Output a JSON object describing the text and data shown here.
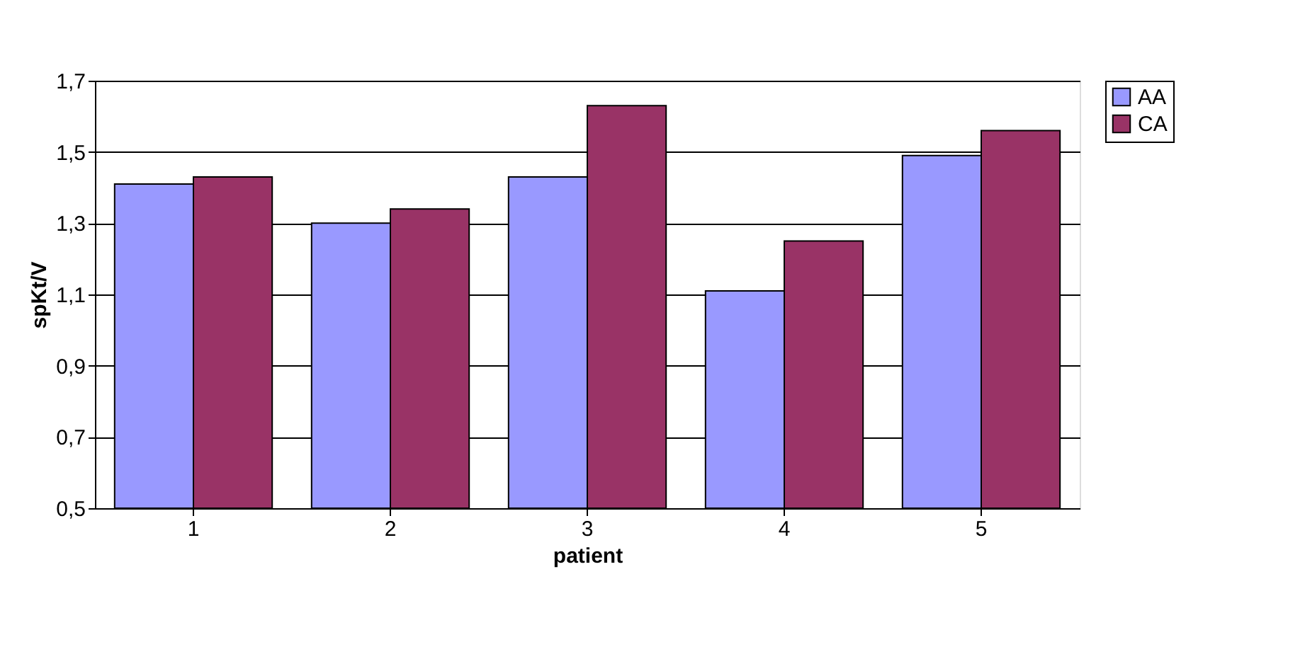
{
  "chart_data": {
    "type": "bar",
    "xlabel": "patient",
    "ylabel": "spKt/V",
    "categories": [
      "1",
      "2",
      "3",
      "4",
      "5"
    ],
    "series": [
      {
        "name": "AA",
        "color": "#9999ff",
        "values": [
          1.41,
          1.3,
          1.43,
          1.11,
          1.49
        ]
      },
      {
        "name": "CA",
        "color": "#993366",
        "values": [
          1.43,
          1.34,
          1.63,
          1.25,
          1.56
        ]
      }
    ],
    "ylim": [
      0.5,
      1.7
    ],
    "yticks": [
      {
        "value": 0.5,
        "label": "0,5"
      },
      {
        "value": 0.7,
        "label": "0,7"
      },
      {
        "value": 0.9,
        "label": "0,9"
      },
      {
        "value": 1.1,
        "label": "1,1"
      },
      {
        "value": 1.3,
        "label": "1,3"
      },
      {
        "value": 1.5,
        "label": "1,5"
      },
      {
        "value": 1.7,
        "label": "1,7"
      }
    ],
    "grid": "y",
    "legend": "right"
  }
}
